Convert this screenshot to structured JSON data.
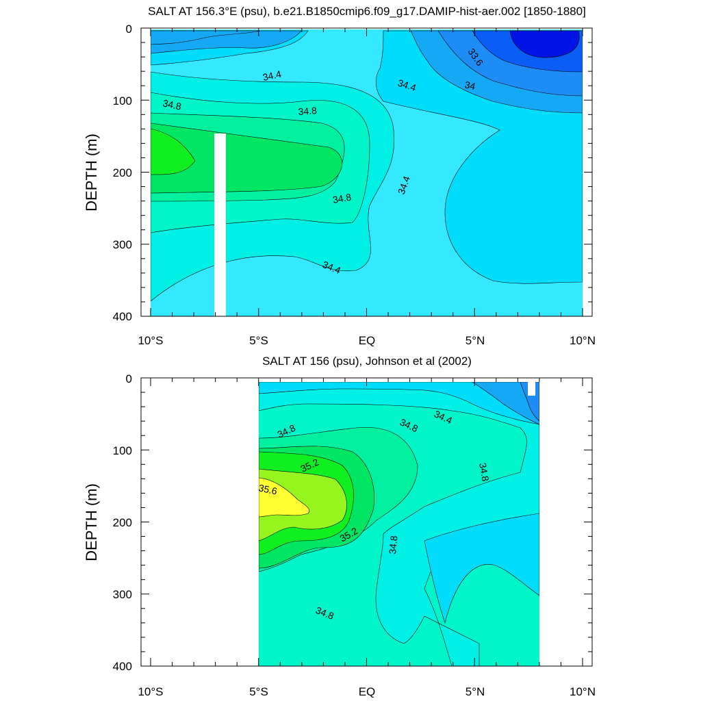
{
  "chart_data": [
    {
      "type": "heatmap",
      "subtype": "filled-contour",
      "title": "SALT AT 156.3°E (psu), b.e21.B1850cmip6.f09_g17.DAMIP-hist-aer.002 [1850-1880]",
      "ylabel": "DEPTH (m)",
      "xlabel": "",
      "xlim": [
        -10,
        10
      ],
      "ylim": [
        400,
        0
      ],
      "xticks": [
        "10°S",
        "5°S",
        "EQ",
        "5°N",
        "10°N"
      ],
      "yticks": [
        "0",
        "100",
        "200",
        "300",
        "400"
      ],
      "contour_levels": [
        33.4,
        33.6,
        33.8,
        34.0,
        34.2,
        34.4,
        34.6,
        34.8,
        35.0
      ],
      "contour_labels": [
        {
          "text": "33.6",
          "x": 4.7,
          "depth": 30
        },
        {
          "text": "34",
          "x": 4.8,
          "depth": 80
        },
        {
          "text": "34.4",
          "x": -4.5,
          "depth": 65
        },
        {
          "text": "34.4",
          "x": 2.0,
          "depth": 80
        },
        {
          "text": "34.8",
          "x": -9.4,
          "depth": 105
        },
        {
          "text": "34.8",
          "x": -2.6,
          "depth": 115
        },
        {
          "text": "34.8",
          "x": -1.1,
          "depth": 230
        },
        {
          "text": "34.4",
          "x": 1.9,
          "depth": 215
        },
        {
          "text": "34.4",
          "x": -1.6,
          "depth": 335
        }
      ],
      "masked": [
        {
          "x": [
            -7.2,
            -6.7
          ],
          "depth": [
            145,
            400
          ]
        }
      ]
    },
    {
      "type": "heatmap",
      "subtype": "filled-contour",
      "title": "SALT AT 156 (psu), Johnson et al (2002)",
      "ylabel": "DEPTH (m)",
      "xlabel": "",
      "xlim": [
        -10,
        10
      ],
      "ylim": [
        400,
        0
      ],
      "xticks": [
        "10°S",
        "5°S",
        "EQ",
        "5°N",
        "10°N"
      ],
      "yticks": [
        "0",
        "100",
        "200",
        "300",
        "400"
      ],
      "data_extent": {
        "x": [
          -5,
          8
        ],
        "depth": [
          5,
          400
        ]
      },
      "contour_levels": [
        34.0,
        34.4,
        34.8,
        35.2,
        35.6
      ],
      "contour_labels": [
        {
          "text": "34.8",
          "x": -3.6,
          "depth": 70
        },
        {
          "text": "34.8",
          "x": 2.1,
          "depth": 60
        },
        {
          "text": "34.4",
          "x": 3.6,
          "depth": 50
        },
        {
          "text": "35.2",
          "x": -2.3,
          "depth": 115
        },
        {
          "text": "34.8",
          "x": 5.4,
          "depth": 130
        },
        {
          "text": "35.6",
          "x": -4.6,
          "depth": 155
        },
        {
          "text": "35.2",
          "x": -0.6,
          "depth": 218
        },
        {
          "text": "34.8",
          "x": 1.4,
          "depth": 240
        },
        {
          "text": "34.8",
          "x": -1.9,
          "depth": 330
        }
      ]
    }
  ],
  "colors": {
    "s_33_2": "#0014e6",
    "s_33_4": "#0a5ef5",
    "s_33_6": "#1e8cf5",
    "s_33_8": "#14a8f5",
    "s_34_0": "#00c8f5",
    "s_34_2": "#00dcfa",
    "s_34_4": "#34e8ff",
    "s_34_6": "#00f0e6",
    "s_34_8": "#00f5c8",
    "s_35_0": "#00f0a0",
    "s_35_2": "#00e664",
    "s_35_4": "#10f020",
    "s_35_6": "#96f51e",
    "s_35_8": "#ffff32"
  }
}
